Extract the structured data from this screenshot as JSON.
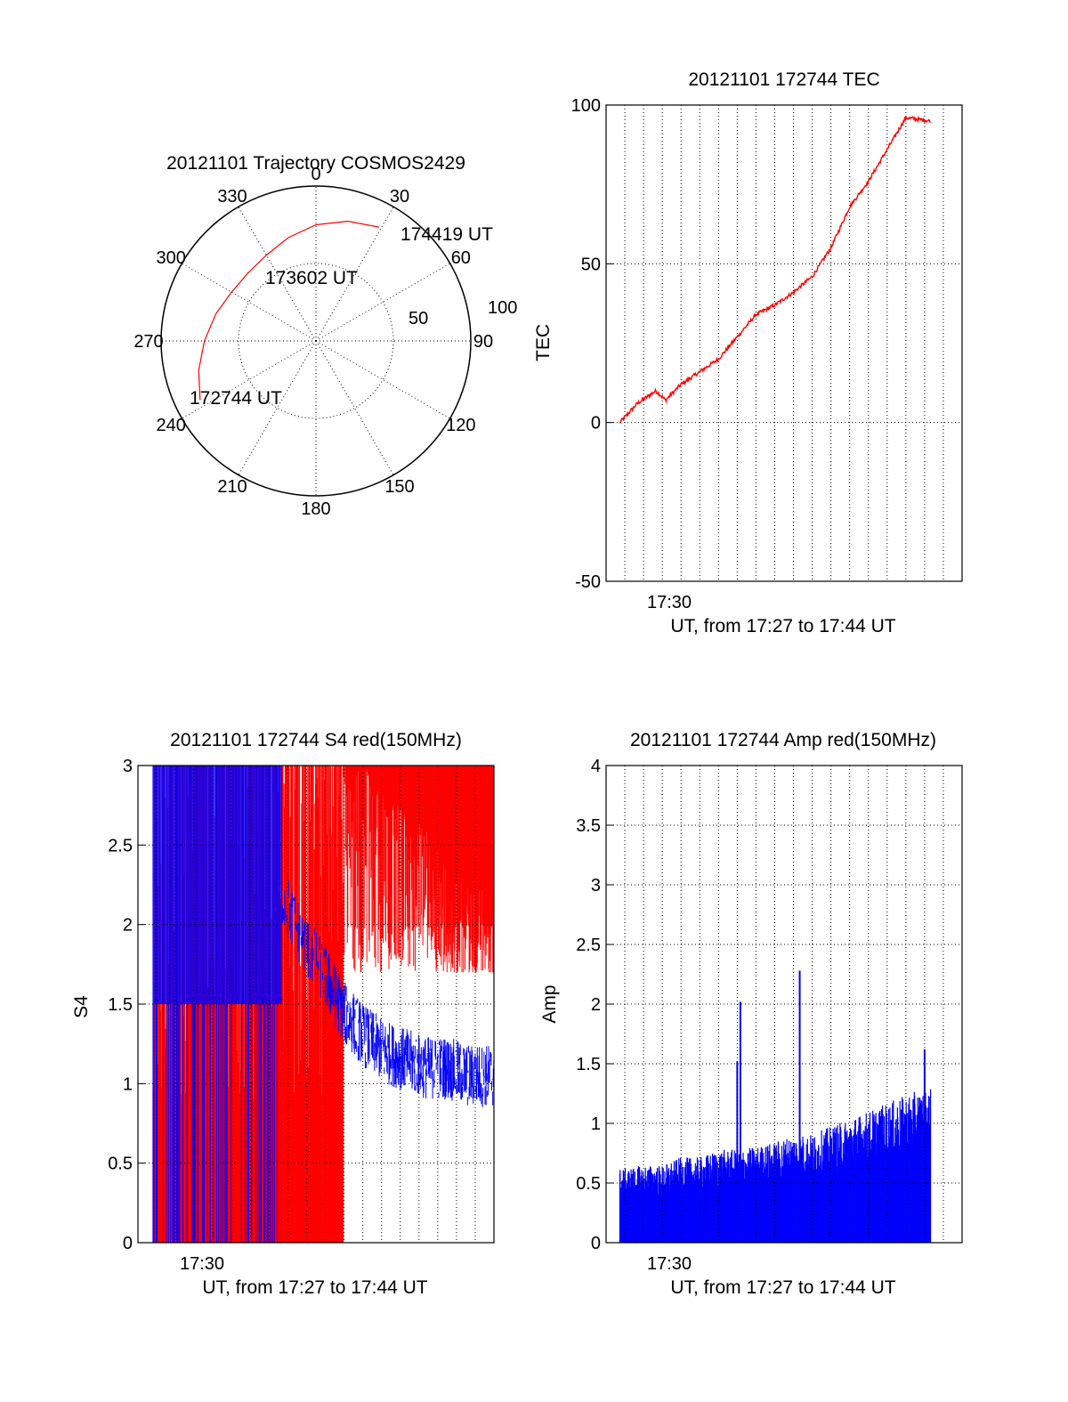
{
  "chart_data": [
    {
      "type": "polar",
      "title": "20121101 Trajectory COSMOS2429",
      "angle_labels": [
        "0",
        "30",
        "60",
        "90",
        "120",
        "150",
        "180",
        "210",
        "240",
        "270",
        "300",
        "330"
      ],
      "radius_labels": [
        "50",
        "100"
      ],
      "rlim": [
        0,
        100
      ],
      "series": [
        {
          "color": "#ff0000",
          "points": [
            {
              "az": 243,
              "r": 84
            },
            {
              "az": 256,
              "r": 78
            },
            {
              "az": 270,
              "r": 72
            },
            {
              "az": 285,
              "r": 67
            },
            {
              "az": 300,
              "r": 63
            },
            {
              "az": 315,
              "r": 62
            },
            {
              "az": 330,
              "r": 64
            },
            {
              "az": 345,
              "r": 69
            },
            {
              "az": 0,
              "r": 75
            },
            {
              "az": 15,
              "r": 80
            },
            {
              "az": 29,
              "r": 84
            }
          ]
        }
      ],
      "annotations": [
        "174419 UT",
        "173602 UT",
        "172744 UT"
      ]
    },
    {
      "type": "line",
      "title": "20121101 172744 TEC",
      "xlabel": "UT, from 17:27 to 17:44 UT",
      "ylabel": "TEC",
      "xlim": [
        "17:27:00",
        "17:46:00"
      ],
      "ylim": [
        -50,
        100
      ],
      "yticks": [
        "-50",
        "0",
        "50",
        "100"
      ],
      "xtick_label": "17:30",
      "grid": true,
      "series": [
        {
          "color": "#ff0000",
          "x": [
            "17:27:44",
            "17:28:40",
            "17:29:40",
            "17:30:10",
            "17:31:00",
            "17:32:00",
            "17:33:00",
            "17:34:00",
            "17:35:00",
            "17:36:00",
            "17:37:00",
            "17:38:00",
            "17:39:00",
            "17:40:00",
            "17:41:00",
            "17:42:00",
            "17:43:00",
            "17:44:19"
          ],
          "y": [
            0,
            6,
            10,
            7,
            12,
            16,
            20,
            27,
            34,
            37,
            41,
            46,
            55,
            68,
            76,
            86,
            96,
            95
          ]
        }
      ]
    },
    {
      "type": "bar",
      "title": "20121101 172744 S4 red(150MHz)",
      "xlabel": "UT, from 17:27 to 17:44 UT",
      "ylabel": "S4",
      "xlim": [
        "17:27:00",
        "17:44:19"
      ],
      "ylim": [
        0,
        3
      ],
      "yticks": [
        "0",
        "0.5",
        "1",
        "1.5",
        "2",
        "2.5",
        "3"
      ],
      "xtick_label": "17:30",
      "grid": true,
      "series": [
        {
          "color": "#ff0000",
          "x": [
            "17:28",
            "17:29",
            "17:30",
            "17:31",
            "17:32",
            "17:33",
            "17:34",
            "17:35",
            "17:36",
            "17:37",
            "17:38",
            "17:39",
            "17:40",
            "17:41",
            "17:42",
            "17:43",
            "17:44"
          ],
          "y": [
            3.0,
            3.0,
            3.0,
            3.0,
            3.0,
            3.0,
            3.0,
            3.0,
            3.0,
            3.0,
            3.0,
            2.9,
            2.8,
            2.6,
            2.4,
            2.3,
            2.2
          ]
        },
        {
          "color": "#0000ff",
          "x": [
            "17:28",
            "17:29",
            "17:30",
            "17:31",
            "17:32",
            "17:33",
            "17:34",
            "17:35",
            "17:36",
            "17:37",
            "17:38",
            "17:39",
            "17:40",
            "17:41",
            "17:42",
            "17:43",
            "17:44"
          ],
          "y": [
            3.0,
            3.0,
            3.0,
            3.0,
            3.0,
            2.6,
            2.2,
            1.9,
            1.7,
            1.45,
            1.3,
            1.2,
            1.15,
            1.1,
            1.1,
            1.05,
            1.05
          ]
        }
      ]
    },
    {
      "type": "bar",
      "title": "20121101 172744 Amp red(150MHz)",
      "xlabel": "UT, from 17:27 to 17:44 UT",
      "ylabel": "Amp",
      "xlim": [
        "17:27:00",
        "17:46:00"
      ],
      "ylim": [
        0,
        4
      ],
      "yticks": [
        "0",
        "0.5",
        "1",
        "1.5",
        "2",
        "2.5",
        "3",
        "3.5",
        "4"
      ],
      "xtick_label": "17:30",
      "grid": true,
      "series": [
        {
          "color": "#0000ff",
          "x": [
            "17:28",
            "17:29",
            "17:30",
            "17:31",
            "17:32",
            "17:33",
            "17:34",
            "17:35",
            "17:36",
            "17:37",
            "17:38",
            "17:39",
            "17:40",
            "17:41",
            "17:42",
            "17:43",
            "17:44"
          ],
          "y": [
            0.48,
            0.5,
            0.5,
            0.55,
            0.55,
            0.6,
            0.6,
            0.62,
            0.65,
            0.7,
            0.7,
            0.75,
            0.8,
            0.85,
            0.9,
            0.95,
            1.0
          ],
          "peaks": [
            {
              "x": "17:34:10",
              "y": 2.02
            },
            {
              "x": "17:34:00",
              "y": 1.52
            },
            {
              "x": "17:37:20",
              "y": 2.28
            },
            {
              "x": "17:44:00",
              "y": 1.62
            }
          ]
        }
      ]
    }
  ]
}
